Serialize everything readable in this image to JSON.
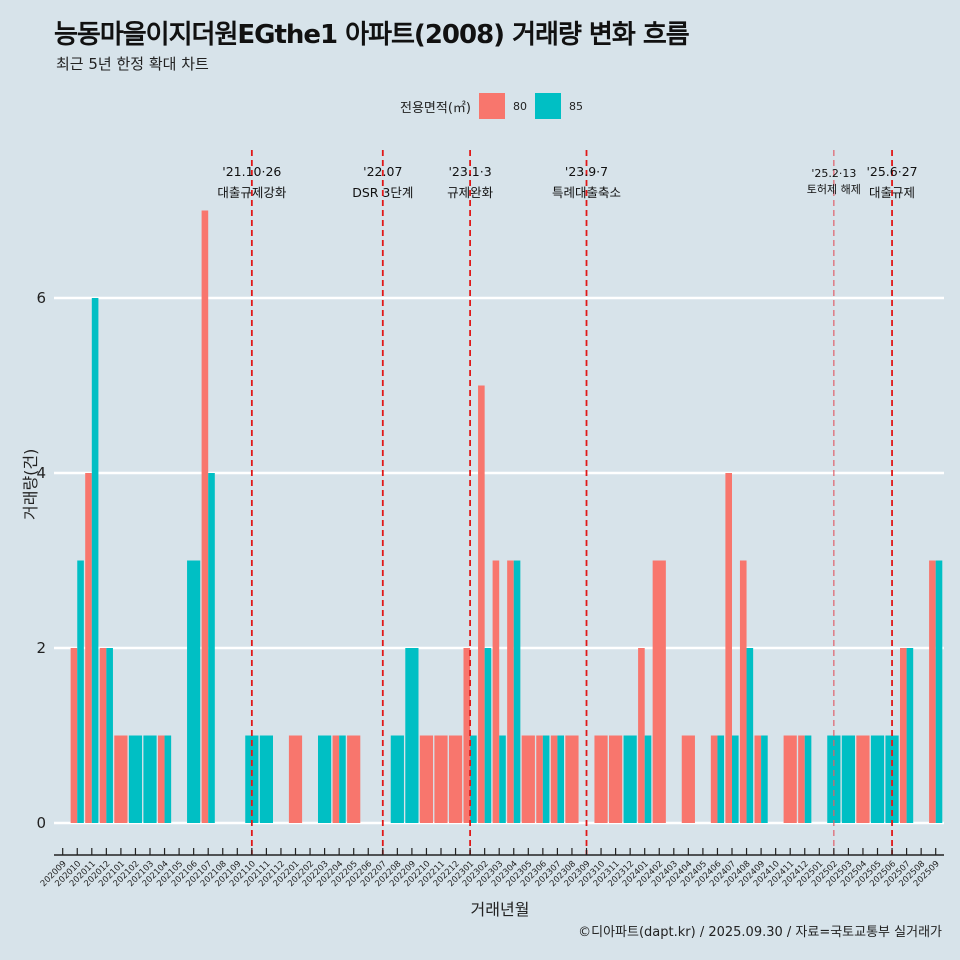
{
  "chart_data": {
    "type": "bar",
    "title": "능동마을이지더원EGthe1 아파트(2008) 거래량 변화 흐름",
    "subtitle": "최근 5년 한정 확대 차트",
    "xlabel": "거래년월",
    "ylabel": "거래량(건)",
    "ylim": [
      -0.35,
      7.4
    ],
    "yticks": [
      0,
      2,
      4,
      6
    ],
    "grid": true,
    "legend": {
      "title": "전용면적(㎡)",
      "placement": "top",
      "entries": [
        {
          "name": "80",
          "color": "#f8766d"
        },
        {
          "name": "85",
          "color": "#00bfc4"
        }
      ]
    },
    "categories": [
      "202009",
      "202010",
      "202011",
      "202012",
      "202101",
      "202102",
      "202103",
      "202104",
      "202105",
      "202106",
      "202107",
      "202108",
      "202109",
      "202110",
      "202111",
      "202112",
      "202201",
      "202202",
      "202203",
      "202204",
      "202205",
      "202206",
      "202207",
      "202208",
      "202209",
      "202210",
      "202211",
      "202212",
      "202301",
      "202302",
      "202303",
      "202304",
      "202305",
      "202306",
      "202307",
      "202308",
      "202309",
      "202310",
      "202311",
      "202312",
      "202401",
      "202402",
      "202403",
      "202404",
      "202405",
      "202406",
      "202407",
      "202408",
      "202409",
      "202410",
      "202411",
      "202412",
      "202501",
      "202502",
      "202503",
      "202504",
      "202505",
      "202506",
      "202507",
      "202508",
      "202509"
    ],
    "series": [
      {
        "name": "80",
        "color": "#f8766d",
        "values": [
          0,
          2,
          4,
          2,
          1,
          0,
          0,
          1,
          0,
          0,
          7,
          0,
          0,
          0,
          0,
          0,
          1,
          0,
          0,
          1,
          1,
          0,
          0,
          0,
          0,
          1,
          1,
          1,
          2,
          5,
          3,
          3,
          1,
          1,
          1,
          1,
          0,
          1,
          1,
          0,
          2,
          3,
          0,
          1,
          0,
          1,
          4,
          3,
          1,
          0,
          1,
          1,
          0,
          0,
          0,
          1,
          0,
          0,
          2,
          0,
          3
        ]
      },
      {
        "name": "85",
        "color": "#00bfc4",
        "values": [
          0,
          3,
          6,
          2,
          0,
          1,
          1,
          1,
          0,
          3,
          4,
          0,
          0,
          1,
          1,
          0,
          0,
          0,
          1,
          1,
          0,
          0,
          0,
          1,
          2,
          0,
          0,
          0,
          1,
          2,
          1,
          3,
          0,
          1,
          1,
          0,
          0,
          0,
          0,
          1,
          1,
          0,
          0,
          0,
          0,
          1,
          1,
          2,
          1,
          0,
          0,
          1,
          0,
          1,
          1,
          0,
          1,
          1,
          2,
          0,
          3
        ]
      }
    ],
    "annotations": [
      {
        "month": "202110",
        "date": "'21.10·26",
        "label": "대출규제강화",
        "style": "dashed-bold"
      },
      {
        "month": "202207",
        "date": "'22.07",
        "label": "DSR 3단계",
        "style": "dashed-bold"
      },
      {
        "month": "202301",
        "date": "'23.1·3",
        "label": "규제완화",
        "style": "dashed-bold"
      },
      {
        "month": "202309",
        "date": "'23.9·7",
        "label": "특례대출축소",
        "style": "dashed-bold"
      },
      {
        "month": "202502",
        "date": "'25.2·13",
        "label": "토허제 해제",
        "style": "dashed-light"
      },
      {
        "month": "202506",
        "date": "'25.6·27",
        "label": "대출규제",
        "style": "dashed-bold"
      }
    ],
    "caption": "©디아파트(dapt.kr) / 2025.09.30 / 자료=국토교통부 실거래가"
  }
}
